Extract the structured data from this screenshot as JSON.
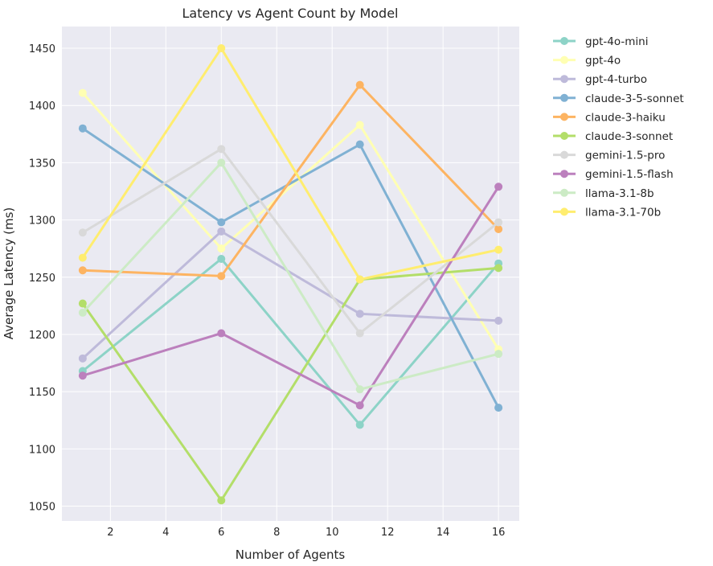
{
  "chart_data": {
    "type": "line",
    "title": "Latency vs Agent Count by Model",
    "xlabel": "Number of Agents",
    "ylabel": "Average Latency (ms)",
    "x": [
      1,
      6,
      11,
      16
    ],
    "xlim": [
      0.25,
      16.75
    ],
    "ylim": [
      1037,
      1469
    ],
    "xticks": [
      2,
      4,
      6,
      8,
      10,
      12,
      14,
      16
    ],
    "yticks": [
      1050,
      1100,
      1150,
      1200,
      1250,
      1300,
      1350,
      1400,
      1450
    ],
    "grid": true,
    "legend_placement": "outside-right",
    "background": "#eaeaf2",
    "series": [
      {
        "name": "gpt-4o-mini",
        "color": "#8dd3c7",
        "values": [
          1168,
          1266,
          1121,
          1262
        ]
      },
      {
        "name": "gpt-4o",
        "color": "#ffffb3",
        "values": [
          1411,
          1275,
          1383,
          1187
        ]
      },
      {
        "name": "gpt-4-turbo",
        "color": "#bebada",
        "values": [
          1179,
          1290,
          1218,
          1212
        ]
      },
      {
        "name": "claude-3-5-sonnet",
        "color": "#80b1d3",
        "values": [
          1380,
          1298,
          1366,
          1136
        ]
      },
      {
        "name": "claude-3-haiku",
        "color": "#fdb462",
        "values": [
          1256,
          1251,
          1418,
          1292
        ]
      },
      {
        "name": "claude-3-sonnet",
        "color": "#b3de69",
        "values": [
          1227,
          1055,
          1248,
          1258
        ]
      },
      {
        "name": "gemini-1.5-pro",
        "color": "#d9d9d9",
        "values": [
          1289,
          1362,
          1201,
          1298
        ]
      },
      {
        "name": "gemini-1.5-flash",
        "color": "#bc80bd",
        "values": [
          1164,
          1201,
          1138,
          1329
        ]
      },
      {
        "name": "llama-3.1-8b",
        "color": "#ccebc5",
        "values": [
          1219,
          1350,
          1152,
          1183
        ]
      },
      {
        "name": "llama-3.1-70b",
        "color": "#ffed6f",
        "values": [
          1267,
          1450,
          1248,
          1274
        ]
      }
    ]
  }
}
